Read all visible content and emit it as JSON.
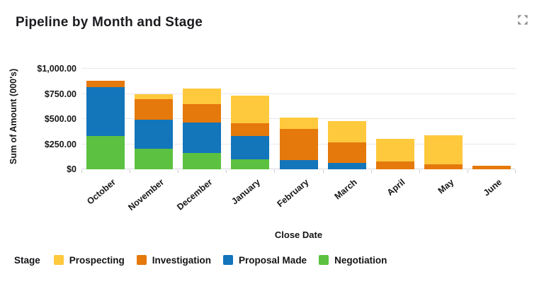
{
  "header": {
    "title": "Pipeline by Month and Stage"
  },
  "chart_data": {
    "type": "bar",
    "stacked": true,
    "title": "Pipeline by Month and Stage",
    "xlabel": "Close Date",
    "ylabel": "Sum of Amount (000's)",
    "ylim": [
      0,
      1000
    ],
    "grid": true,
    "legend_position": "bottom",
    "categories": [
      "October",
      "November",
      "December",
      "January",
      "February",
      "March",
      "April",
      "May",
      "June"
    ],
    "yticks": [
      {
        "value": 1000,
        "label": "$1,000.00"
      },
      {
        "value": 750,
        "label": "$750.00"
      },
      {
        "value": 500,
        "label": "$500.00"
      },
      {
        "value": 250,
        "label": "$250.00"
      },
      {
        "value": 0,
        "label": "$0"
      }
    ],
    "series": [
      {
        "name": "Negotiation",
        "color": "#5CC140",
        "values": [
          330,
          205,
          165,
          100,
          0,
          0,
          0,
          0,
          0
        ]
      },
      {
        "name": "Proposal Made",
        "color": "#1375BA",
        "values": [
          485,
          290,
          300,
          230,
          90,
          60,
          0,
          0,
          0
        ]
      },
      {
        "name": "Investigation",
        "color": "#E5790B",
        "values": [
          65,
          200,
          185,
          130,
          310,
          210,
          80,
          50,
          35
        ]
      },
      {
        "name": "Prospecting",
        "color": "#FFC93D",
        "values": [
          0,
          50,
          155,
          270,
          115,
          210,
          225,
          290,
          0
        ]
      }
    ],
    "legend": {
      "label": "Stage",
      "entries": [
        "Prospecting",
        "Investigation",
        "Proposal Made",
        "Negotiation"
      ]
    }
  },
  "colors": {
    "gridline": "#E8E9EE",
    "axis_line": "#D7D8DD",
    "icon_gray": "#8B8B90",
    "text_dark": "#17171A"
  }
}
